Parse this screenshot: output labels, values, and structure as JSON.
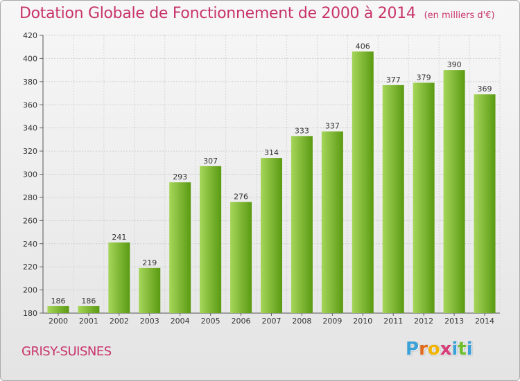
{
  "title": "Dotation Globale de Fonctionnement de 2000 à 2014",
  "unit": "(en milliers d'€)",
  "commune": "GRISY-SUISNES",
  "logo": {
    "letters": [
      "P",
      "r",
      "o",
      "x",
      "i",
      "t",
      "i"
    ],
    "colors": [
      "#3aa0d8",
      "#e06a1c",
      "#f0b400",
      "#d73c7a",
      "#3aa0d8",
      "#6cbf2b",
      "#3aa0d8"
    ]
  },
  "colors": {
    "title": "#c8336a",
    "bar_light": "#a6d65a",
    "bar_dark": "#5a9a12"
  },
  "chart_data": {
    "type": "bar",
    "categories": [
      "2000",
      "2001",
      "2002",
      "2003",
      "2004",
      "2005",
      "2006",
      "2007",
      "2008",
      "2009",
      "2010",
      "2011",
      "2012",
      "2013",
      "2014"
    ],
    "values": [
      186,
      186,
      241,
      219,
      293,
      307,
      276,
      314,
      333,
      337,
      406,
      377,
      379,
      390,
      369
    ],
    "ylim": [
      180,
      420
    ],
    "yticks": [
      180,
      200,
      220,
      240,
      260,
      280,
      300,
      320,
      340,
      360,
      380,
      400,
      420
    ],
    "grid": true
  }
}
